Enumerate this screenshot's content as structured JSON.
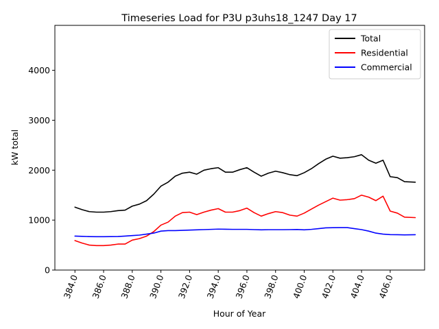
{
  "chart_data": {
    "type": "line",
    "title": "Timeseries Load for P3U p3uhs18_1247  Day 17",
    "xlabel": "Hour of Year",
    "ylabel": "kW total",
    "xlim": [
      382.6,
      408.4
    ],
    "ylim": [
      0,
      4900
    ],
    "xticks": [
      384,
      386,
      388,
      390,
      392,
      394,
      396,
      398,
      400,
      402,
      404,
      406
    ],
    "xtick_labels": [
      "384.0",
      "386.0",
      "388.0",
      "390.0",
      "392.0",
      "394.0",
      "396.0",
      "398.0",
      "400.0",
      "402.0",
      "404.0",
      "406.0"
    ],
    "yticks": [
      0,
      1000,
      2000,
      3000,
      4000
    ],
    "ytick_labels": [
      "0",
      "1000",
      "2000",
      "3000",
      "4000"
    ],
    "x": [
      384.0,
      384.5,
      385.0,
      385.5,
      386.0,
      386.5,
      387.0,
      387.5,
      388.0,
      388.5,
      389.0,
      389.5,
      390.0,
      390.5,
      391.0,
      391.5,
      392.0,
      392.5,
      393.0,
      393.5,
      394.0,
      394.5,
      395.0,
      395.5,
      396.0,
      396.5,
      397.0,
      397.5,
      398.0,
      398.5,
      399.0,
      399.5,
      400.0,
      400.5,
      401.0,
      401.5,
      402.0,
      402.5,
      403.0,
      403.5,
      404.0,
      404.5,
      405.0,
      405.5,
      406.0,
      406.5,
      407.0,
      407.75
    ],
    "series": [
      {
        "name": "Total",
        "color": "#000000",
        "values": [
          1260,
          1210,
          1170,
          1160,
          1160,
          1170,
          1190,
          1200,
          1280,
          1320,
          1390,
          1520,
          1680,
          1760,
          1880,
          1940,
          1960,
          1920,
          2000,
          2030,
          2050,
          1960,
          1960,
          2010,
          2050,
          1960,
          1880,
          1940,
          1980,
          1950,
          1910,
          1890,
          1950,
          2030,
          2130,
          2220,
          2280,
          2240,
          2250,
          2270,
          2310,
          2200,
          2140,
          2200,
          1870,
          1850,
          1770,
          1760
        ]
      },
      {
        "name": "Residential",
        "color": "#ff0000",
        "values": [
          590,
          540,
          500,
          490,
          490,
          500,
          520,
          520,
          600,
          630,
          680,
          770,
          900,
          960,
          1080,
          1150,
          1160,
          1110,
          1160,
          1200,
          1230,
          1160,
          1160,
          1190,
          1240,
          1150,
          1080,
          1130,
          1170,
          1150,
          1100,
          1080,
          1140,
          1220,
          1300,
          1370,
          1440,
          1400,
          1410,
          1430,
          1500,
          1460,
          1390,
          1480,
          1180,
          1140,
          1060,
          1050
        ]
      },
      {
        "name": "Commercial",
        "color": "#0000ff",
        "values": [
          680,
          675,
          670,
          668,
          668,
          670,
          672,
          680,
          690,
          700,
          720,
          740,
          780,
          790,
          790,
          795,
          800,
          805,
          810,
          815,
          820,
          818,
          815,
          815,
          815,
          810,
          805,
          808,
          808,
          808,
          810,
          812,
          806,
          815,
          830,
          845,
          848,
          850,
          850,
          830,
          810,
          780,
          740,
          720,
          710,
          708,
          705,
          708
        ]
      }
    ],
    "legend": {
      "position": "top-right",
      "entries": [
        "Total",
        "Residential",
        "Commercial"
      ]
    }
  }
}
